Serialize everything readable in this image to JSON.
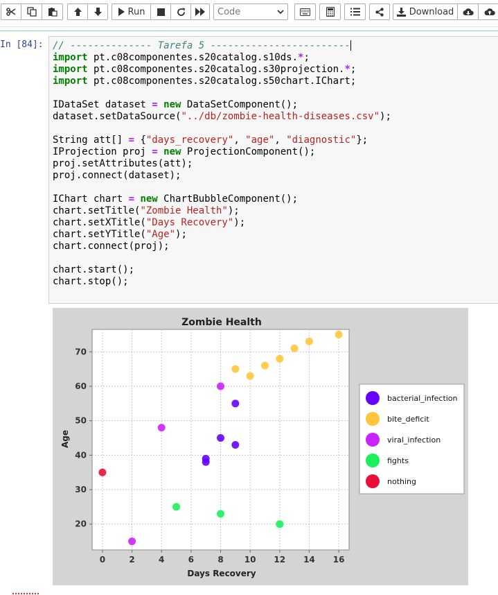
{
  "toolbar": {
    "run_label": "Run",
    "cell_type": "Code",
    "download_label": "Download"
  },
  "cell": {
    "prompt": "In [84]:",
    "code_lines": [
      [
        {
          "t": "c",
          "v": "// -------------- Tarefa 5 ------------------------"
        }
      ],
      [
        {
          "t": "k",
          "v": "import"
        },
        {
          "t": "p",
          "v": " pt.c08componentes.s20catalog.s10ds."
        },
        {
          "t": "o",
          "v": "*"
        },
        {
          "t": "p",
          "v": ";"
        }
      ],
      [
        {
          "t": "k",
          "v": "import"
        },
        {
          "t": "p",
          "v": " pt.c08componentes.s20catalog.s30projection."
        },
        {
          "t": "o",
          "v": "*"
        },
        {
          "t": "p",
          "v": ";"
        }
      ],
      [
        {
          "t": "k",
          "v": "import"
        },
        {
          "t": "p",
          "v": " pt.c08componentes.s20catalog.s50chart.IChart;"
        }
      ],
      [],
      [
        {
          "t": "p",
          "v": "IDataSet dataset "
        },
        {
          "t": "o",
          "v": "="
        },
        {
          "t": "p",
          "v": " "
        },
        {
          "t": "k",
          "v": "new"
        },
        {
          "t": "p",
          "v": " DataSetComponent();"
        }
      ],
      [
        {
          "t": "p",
          "v": "dataset.setDataSource("
        },
        {
          "t": "s",
          "v": "\"../db/zombie-health-diseases.csv\""
        },
        {
          "t": "p",
          "v": ");"
        }
      ],
      [],
      [
        {
          "t": "p",
          "v": "String att[] "
        },
        {
          "t": "o",
          "v": "="
        },
        {
          "t": "p",
          "v": " {"
        },
        {
          "t": "s",
          "v": "\"days_recovery\""
        },
        {
          "t": "p",
          "v": ", "
        },
        {
          "t": "s",
          "v": "\"age\""
        },
        {
          "t": "p",
          "v": ", "
        },
        {
          "t": "s",
          "v": "\"diagnostic\""
        },
        {
          "t": "p",
          "v": "};"
        }
      ],
      [
        {
          "t": "p",
          "v": "IProjection proj "
        },
        {
          "t": "o",
          "v": "="
        },
        {
          "t": "p",
          "v": " "
        },
        {
          "t": "k",
          "v": "new"
        },
        {
          "t": "p",
          "v": " ProjectionComponent();"
        }
      ],
      [
        {
          "t": "p",
          "v": "proj.setAttributes(att);"
        }
      ],
      [
        {
          "t": "p",
          "v": "proj.connect(dataset);"
        }
      ],
      [],
      [
        {
          "t": "p",
          "v": "IChart chart "
        },
        {
          "t": "o",
          "v": "="
        },
        {
          "t": "p",
          "v": " "
        },
        {
          "t": "k",
          "v": "new"
        },
        {
          "t": "p",
          "v": " ChartBubbleComponent();"
        }
      ],
      [
        {
          "t": "p",
          "v": "chart.setTitle("
        },
        {
          "t": "s",
          "v": "\"Zombie Health\""
        },
        {
          "t": "p",
          "v": ");"
        }
      ],
      [
        {
          "t": "p",
          "v": "chart.setXTitle("
        },
        {
          "t": "s",
          "v": "\"Days Recovery\""
        },
        {
          "t": "p",
          "v": ");"
        }
      ],
      [
        {
          "t": "p",
          "v": "chart.setYTitle("
        },
        {
          "t": "s",
          "v": "\"Age\""
        },
        {
          "t": "p",
          "v": ");"
        }
      ],
      [
        {
          "t": "p",
          "v": "chart.connect(proj);"
        }
      ],
      [],
      [
        {
          "t": "p",
          "v": "chart.start();"
        }
      ],
      [
        {
          "t": "p",
          "v": "chart.stop();"
        }
      ]
    ]
  },
  "chart_data": {
    "type": "scatter",
    "title": "Zombie Health",
    "xlabel": "Days Recovery",
    "ylabel": "Age",
    "xlim": [
      -0.7,
      16.7
    ],
    "ylim": [
      12.5,
      76.5
    ],
    "xticks": [
      0,
      2,
      4,
      6,
      8,
      10,
      12,
      14,
      16
    ],
    "yticks": [
      20,
      30,
      40,
      50,
      60,
      70
    ],
    "grid": true,
    "legend": "right",
    "series": [
      {
        "name": "bacterial_infection",
        "color": "#6600ff",
        "points": [
          [
            7,
            38
          ],
          [
            7,
            39
          ],
          [
            8,
            45
          ],
          [
            9,
            43
          ],
          [
            9,
            55
          ]
        ]
      },
      {
        "name": "bite_deficit",
        "color": "#ffc63a",
        "points": [
          [
            9,
            65
          ],
          [
            10,
            63
          ],
          [
            11,
            66
          ],
          [
            12,
            68
          ],
          [
            13,
            71
          ],
          [
            14,
            73
          ],
          [
            16,
            75
          ]
        ]
      },
      {
        "name": "viral_infection",
        "color": "#cc22ff",
        "points": [
          [
            2,
            15
          ],
          [
            4,
            48
          ],
          [
            8,
            60
          ]
        ]
      },
      {
        "name": "fights",
        "color": "#19f05a",
        "points": [
          [
            5,
            25
          ],
          [
            8,
            23
          ],
          [
            12,
            20
          ]
        ]
      },
      {
        "name": "nothing",
        "color": "#e8103a",
        "points": [
          [
            0,
            35
          ]
        ]
      }
    ]
  }
}
